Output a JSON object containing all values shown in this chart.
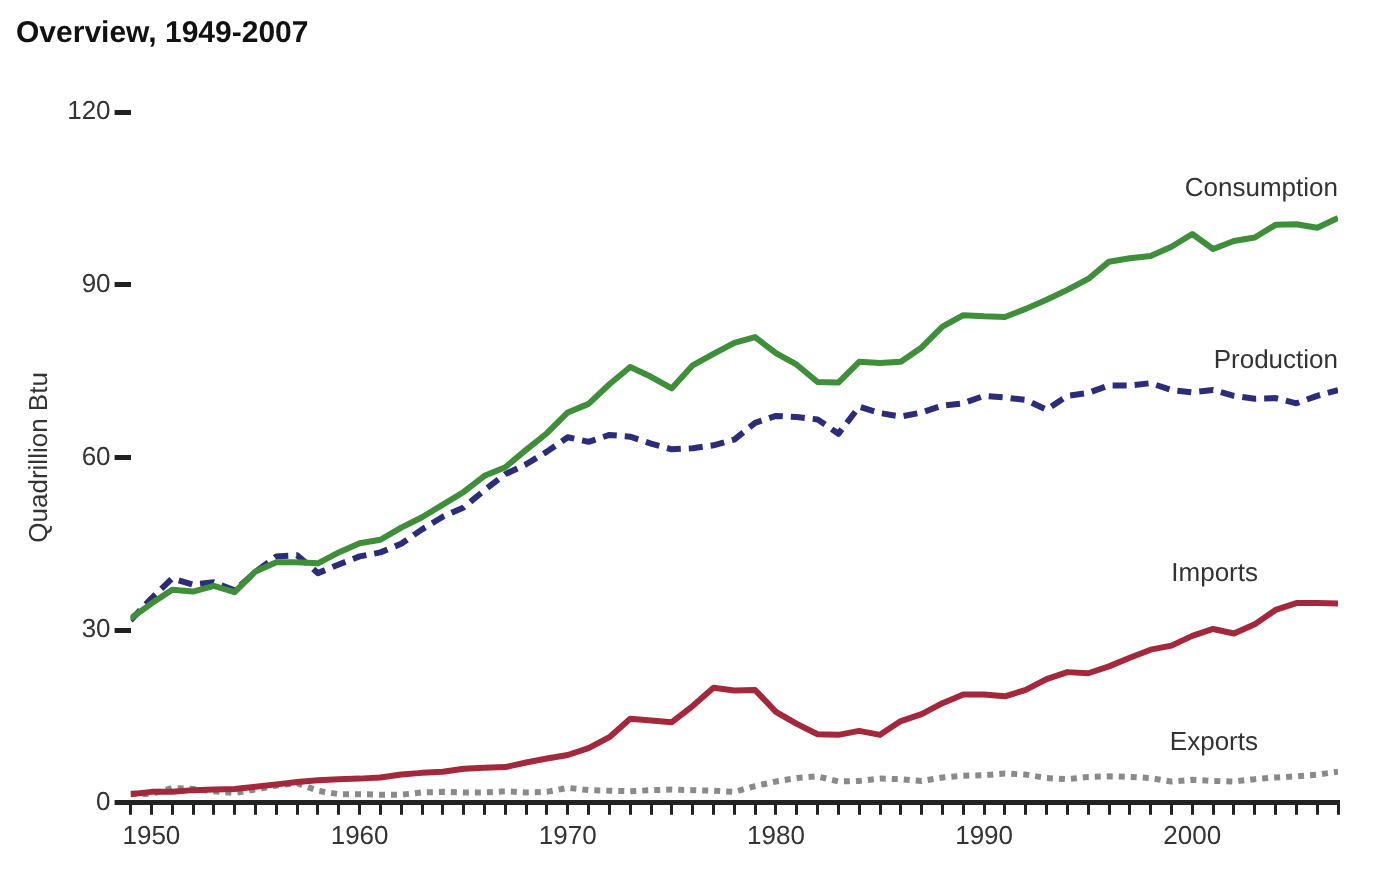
{
  "chart_data": {
    "type": "line",
    "title": "Overview, 1949-2007",
    "ylabel": "Quadrillion Btu",
    "x": [
      1949,
      1950,
      1951,
      1952,
      1953,
      1954,
      1955,
      1956,
      1957,
      1958,
      1959,
      1960,
      1961,
      1962,
      1963,
      1964,
      1965,
      1966,
      1967,
      1968,
      1969,
      1970,
      1971,
      1972,
      1973,
      1974,
      1975,
      1976,
      1977,
      1978,
      1979,
      1980,
      1981,
      1982,
      1983,
      1984,
      1985,
      1986,
      1987,
      1988,
      1989,
      1990,
      1991,
      1992,
      1993,
      1994,
      1995,
      1996,
      1997,
      1998,
      1999,
      2000,
      2001,
      2002,
      2003,
      2004,
      2005,
      2006,
      2007
    ],
    "series": [
      {
        "name": "Consumption",
        "color": "#3f8f3a",
        "line_style": "solid",
        "values": [
          32.0,
          34.6,
          37.0,
          36.7,
          37.7,
          36.6,
          40.2,
          41.8,
          41.8,
          41.6,
          43.5,
          45.1,
          45.7,
          47.8,
          49.6,
          51.8,
          54.0,
          56.8,
          58.3,
          61.3,
          64.2,
          67.8,
          69.3,
          72.7,
          75.7,
          74.0,
          72.0,
          76.0,
          78.0,
          79.9,
          80.9,
          78.1,
          76.1,
          73.1,
          73.0,
          76.6,
          76.4,
          76.6,
          79.1,
          82.7,
          84.7,
          84.5,
          84.4,
          85.8,
          87.4,
          89.1,
          91.0,
          94.0,
          94.6,
          95.0,
          96.6,
          98.8,
          96.2,
          97.6,
          98.2,
          100.4,
          100.5,
          99.9,
          101.6
        ]
      },
      {
        "name": "Production",
        "color": "#2b2d7a",
        "line_style": "dashed",
        "values": [
          31.7,
          35.5,
          39.0,
          37.9,
          38.3,
          36.9,
          40.1,
          42.8,
          43.0,
          39.9,
          41.4,
          42.8,
          43.5,
          45.0,
          47.5,
          49.7,
          51.3,
          54.3,
          57.1,
          58.8,
          61.0,
          63.5,
          62.7,
          63.9,
          63.6,
          62.4,
          61.4,
          61.6,
          62.1,
          63.1,
          66.0,
          67.2,
          67.0,
          66.6,
          64.1,
          68.8,
          67.7,
          67.1,
          67.8,
          69.0,
          69.4,
          70.7,
          70.4,
          70.0,
          68.3,
          70.7,
          71.2,
          72.5,
          72.5,
          72.9,
          71.7,
          71.3,
          71.7,
          70.7,
          70.2,
          70.3,
          69.4,
          70.7,
          71.7
        ]
      },
      {
        "name": "Imports",
        "color": "#a3283c",
        "line_style": "solid",
        "values": [
          1.5,
          1.9,
          1.9,
          2.2,
          2.3,
          2.4,
          2.8,
          3.2,
          3.6,
          3.9,
          4.1,
          4.2,
          4.4,
          4.9,
          5.2,
          5.4,
          5.9,
          6.1,
          6.2,
          7.0,
          7.7,
          8.3,
          9.5,
          11.4,
          14.6,
          14.3,
          14.0,
          16.8,
          20.0,
          19.5,
          19.6,
          15.8,
          13.7,
          11.9,
          11.8,
          12.5,
          11.8,
          14.2,
          15.4,
          17.3,
          18.8,
          18.8,
          18.5,
          19.6,
          21.5,
          22.7,
          22.5,
          23.7,
          25.2,
          26.6,
          27.3,
          29.0,
          30.2,
          29.4,
          31.0,
          33.5,
          34.7,
          34.7,
          34.6
        ]
      },
      {
        "name": "Exports",
        "color": "#8a8a8a",
        "line_style": "dotted",
        "values": [
          1.6,
          1.5,
          2.6,
          2.4,
          2.0,
          1.7,
          2.3,
          3.0,
          3.4,
          2.1,
          1.5,
          1.5,
          1.4,
          1.4,
          1.8,
          1.9,
          1.8,
          1.8,
          2.0,
          1.8,
          1.9,
          2.6,
          2.2,
          2.1,
          2.0,
          2.2,
          2.3,
          2.2,
          2.1,
          1.9,
          2.9,
          3.7,
          4.3,
          4.6,
          3.7,
          3.8,
          4.2,
          4.1,
          3.8,
          4.4,
          4.7,
          4.8,
          5.1,
          4.9,
          4.3,
          4.1,
          4.5,
          4.6,
          4.5,
          4.3,
          3.7,
          4.0,
          3.8,
          3.7,
          4.1,
          4.4,
          4.6,
          4.9,
          5.4
        ]
      }
    ],
    "xlim": [
      1949,
      2007
    ],
    "xticks": [
      {
        "value": 1949,
        "label": null
      },
      1950,
      {
        "value": 1951,
        "label": null
      },
      {
        "value": 1952,
        "label": null
      },
      {
        "value": 1953,
        "label": null
      },
      {
        "value": 1954,
        "label": null
      },
      {
        "value": 1955,
        "label": null
      },
      {
        "value": 1956,
        "label": null
      },
      {
        "value": 1957,
        "label": null
      },
      {
        "value": 1958,
        "label": null
      },
      {
        "value": 1959,
        "label": null
      },
      1960,
      {
        "value": 1961,
        "label": null
      },
      {
        "value": 1962,
        "label": null
      },
      {
        "value": 1963,
        "label": null
      },
      {
        "value": 1964,
        "label": null
      },
      {
        "value": 1965,
        "label": null
      },
      {
        "value": 1966,
        "label": null
      },
      {
        "value": 1967,
        "label": null
      },
      {
        "value": 1968,
        "label": null
      },
      {
        "value": 1969,
        "label": null
      },
      1970,
      {
        "value": 1971,
        "label": null
      },
      {
        "value": 1972,
        "label": null
      },
      {
        "value": 1973,
        "label": null
      },
      {
        "value": 1974,
        "label": null
      },
      {
        "value": 1975,
        "label": null
      },
      {
        "value": 1976,
        "label": null
      },
      {
        "value": 1977,
        "label": null
      },
      {
        "value": 1978,
        "label": null
      },
      {
        "value": 1979,
        "label": null
      },
      1980,
      {
        "value": 1981,
        "label": null
      },
      {
        "value": 1982,
        "label": null
      },
      {
        "value": 1983,
        "label": null
      },
      {
        "value": 1984,
        "label": null
      },
      {
        "value": 1985,
        "label": null
      },
      {
        "value": 1986,
        "label": null
      },
      {
        "value": 1987,
        "label": null
      },
      {
        "value": 1988,
        "label": null
      },
      {
        "value": 1989,
        "label": null
      },
      1990,
      {
        "value": 1991,
        "label": null
      },
      {
        "value": 1992,
        "label": null
      },
      {
        "value": 1993,
        "label": null
      },
      {
        "value": 1994,
        "label": null
      },
      {
        "value": 1995,
        "label": null
      },
      {
        "value": 1996,
        "label": null
      },
      {
        "value": 1997,
        "label": null
      },
      {
        "value": 1998,
        "label": null
      },
      {
        "value": 1999,
        "label": null
      },
      2000,
      {
        "value": 2001,
        "label": null
      },
      {
        "value": 2002,
        "label": null
      },
      {
        "value": 2003,
        "label": null
      },
      {
        "value": 2004,
        "label": null
      },
      {
        "value": 2005,
        "label": null
      },
      {
        "value": 2006,
        "label": null
      },
      {
        "value": 2007,
        "label": null
      }
    ],
    "ylim": [
      0,
      120
    ],
    "yticks": [
      0,
      30,
      60,
      90,
      120
    ],
    "grid": false,
    "legend": false,
    "marker": "none"
  }
}
